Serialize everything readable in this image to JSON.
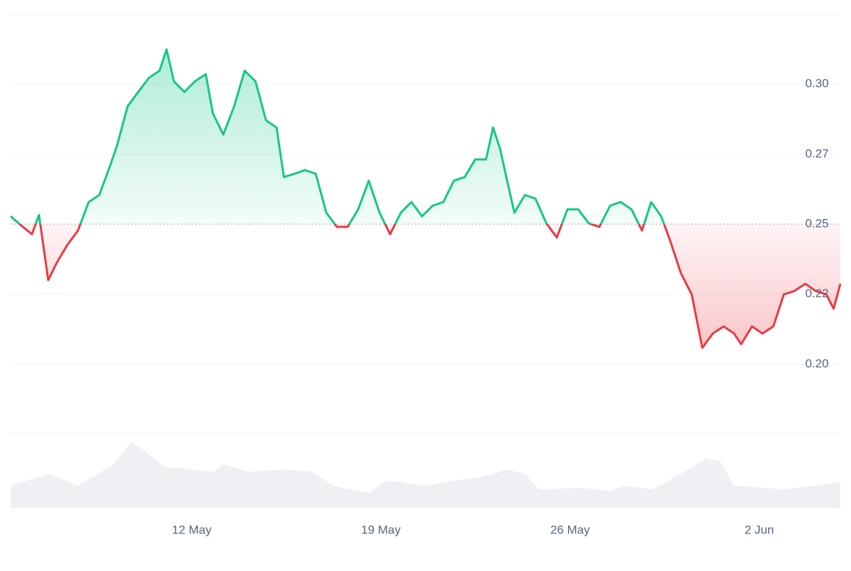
{
  "chart_data": {
    "type": "line",
    "x": [
      5.3,
      5.69,
      6.09,
      6.35,
      6.69,
      7.01,
      7.4,
      7.79,
      8.19,
      8.58,
      8.97,
      9.24,
      9.63,
      10.02,
      10.42,
      10.81,
      11.07,
      11.34,
      11.73,
      12.12,
      12.52,
      12.78,
      13.17,
      13.57,
      13.96,
      14.36,
      14.75,
      15.14,
      15.41,
      15.8,
      16.19,
      16.59,
      16.98,
      17.37,
      17.77,
      18.16,
      18.55,
      18.95,
      19.34,
      19.74,
      20.13,
      20.52,
      20.92,
      21.31,
      21.7,
      22.1,
      22.49,
      22.89,
      23.15,
      23.41,
      23.67,
      23.94,
      24.33,
      24.72,
      25.12,
      25.51,
      25.9,
      26.3,
      26.69,
      27.08,
      27.48,
      27.87,
      28.27,
      28.66,
      29.0,
      29.37,
      29.71,
      30.1,
      30.5,
      30.89,
      31.28,
      31.68,
      32.07,
      32.33,
      32.73,
      33.12,
      33.52,
      33.91,
      34.3,
      34.7,
      35.09,
      35.48,
      35.75,
      36.0
    ],
    "values": [
      0.2528,
      0.2495,
      0.2464,
      0.2533,
      0.23,
      0.2363,
      0.2426,
      0.2477,
      0.2579,
      0.2604,
      0.2706,
      0.2782,
      0.2921,
      0.2972,
      0.3023,
      0.3048,
      0.3124,
      0.301,
      0.2972,
      0.301,
      0.3036,
      0.2896,
      0.282,
      0.2921,
      0.3048,
      0.301,
      0.2871,
      0.2845,
      0.2668,
      0.268,
      0.2693,
      0.268,
      0.2541,
      0.249,
      0.249,
      0.2553,
      0.2655,
      0.2541,
      0.2464,
      0.2541,
      0.2579,
      0.2528,
      0.2566,
      0.2579,
      0.2655,
      0.2668,
      0.2731,
      0.2731,
      0.2845,
      0.2769,
      0.2655,
      0.2541,
      0.2604,
      0.2591,
      0.2503,
      0.2452,
      0.2553,
      0.2553,
      0.2503,
      0.249,
      0.2566,
      0.2579,
      0.2553,
      0.2477,
      0.2579,
      0.2528,
      0.2439,
      0.2325,
      0.2249,
      0.2058,
      0.2109,
      0.2135,
      0.2109,
      0.2071,
      0.2135,
      0.2109,
      0.2135,
      0.2249,
      0.2261,
      0.2287,
      0.2261,
      0.2249,
      0.2198,
      0.2287
    ],
    "baseline": 0.25,
    "up_color": "#16c784",
    "down_color": "#ea3943",
    "xlim": [
      5.3,
      36.0
    ],
    "xticks": [
      {
        "value": 12,
        "label": "12 May"
      },
      {
        "value": 19,
        "label": "19 May"
      },
      {
        "value": 26,
        "label": "26 May"
      },
      {
        "value": 33,
        "label": "2 Jun"
      }
    ],
    "ylim": [
      0.175,
      0.325
    ],
    "yticks": [
      {
        "value": 0.2,
        "label": "0.20"
      },
      {
        "value": 0.225,
        "label": "0.22"
      },
      {
        "value": 0.25,
        "label": "0.25"
      },
      {
        "value": 0.275,
        "label": "0.27"
      },
      {
        "value": 0.3,
        "label": "0.30"
      }
    ],
    "grid": true,
    "volume": {
      "color": "#eef0f4",
      "x": [
        5.3,
        6.74,
        7.79,
        9.11,
        9.76,
        10.42,
        10.94,
        11.99,
        12.78,
        13.17,
        14.09,
        15.41,
        16.45,
        17.24,
        18.55,
        19.21,
        20.65,
        21.7,
        22.75,
        23.67,
        24.33,
        24.85,
        26.43,
        27.48,
        28.0,
        29.05,
        30.1,
        31.02,
        31.55,
        32.07,
        33.25,
        33.78,
        35.09,
        36.0
      ],
      "values": [
        30,
        46,
        30,
        59,
        90,
        73,
        56,
        52,
        49,
        59,
        49,
        52,
        49,
        30,
        20,
        37,
        30,
        37,
        42,
        52,
        46,
        25,
        27,
        23,
        30,
        25,
        46,
        67,
        63,
        30,
        27,
        25,
        30,
        35
      ],
      "ylim": [
        0,
        100
      ]
    }
  }
}
